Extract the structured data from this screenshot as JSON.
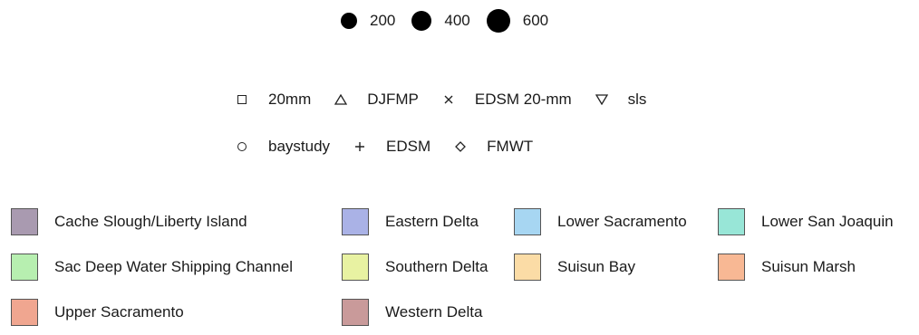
{
  "chart_data": {
    "type": "legend",
    "size_legend": {
      "items": [
        {
          "label": "200",
          "value": 200
        },
        {
          "label": "400",
          "value": 400
        },
        {
          "label": "600",
          "value": 600
        }
      ]
    },
    "survey_legend": {
      "rows": [
        [
          {
            "label": "20mm",
            "shape": "square-icon"
          },
          {
            "label": "DJFMP",
            "shape": "triangle-up-icon"
          },
          {
            "label": "EDSM 20-mm",
            "shape": "cross-x-icon"
          },
          {
            "label": "sls",
            "shape": "triangle-down-icon"
          }
        ],
        [
          {
            "label": "baystudy",
            "shape": "circle-icon"
          },
          {
            "label": "EDSM",
            "shape": "plus-icon"
          },
          {
            "label": "FMWT",
            "shape": "diamond-icon"
          }
        ]
      ]
    },
    "region_legend": {
      "rows": [
        [
          {
            "label": "Cache Slough/Liberty Island",
            "color": "#a99ab0"
          },
          {
            "label": "Eastern Delta",
            "color": "#aab2e6"
          },
          {
            "label": "Lower Sacramento",
            "color": "#a7d6f2"
          },
          {
            "label": "Lower San Joaquin",
            "color": "#98e6d7"
          }
        ],
        [
          {
            "label": "Sac Deep Water Shipping Channel",
            "color": "#b7efb0"
          },
          {
            "label": "Southern Delta",
            "color": "#e8f2a2"
          },
          {
            "label": "Suisun Bay",
            "color": "#fbdca6"
          },
          {
            "label": "Suisun Marsh",
            "color": "#f8b894"
          }
        ],
        [
          {
            "label": "Upper Sacramento",
            "color": "#f0a690"
          },
          {
            "label": "Western Delta",
            "color": "#c99a9a"
          }
        ]
      ]
    }
  }
}
